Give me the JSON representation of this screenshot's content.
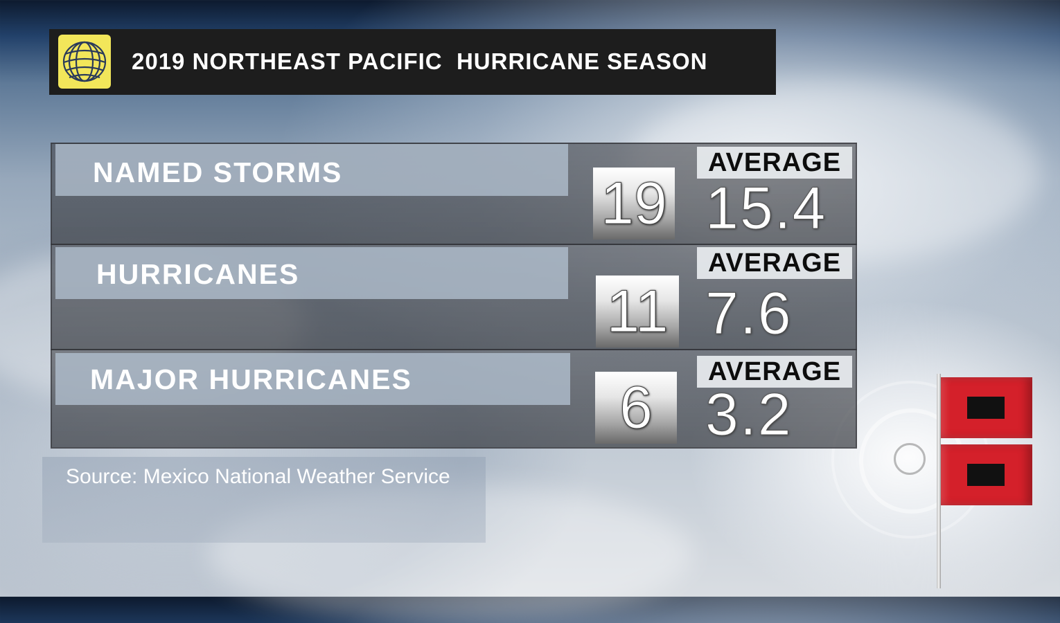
{
  "title": "2019 NORTHEAST PACIFIC  HURRICANE SEASON",
  "rows": [
    {
      "label": "NAMED STORMS",
      "value": "19",
      "average_label": "AVERAGE",
      "average_value": "15.4"
    },
    {
      "label": "HURRICANES",
      "value": "11",
      "average_label": "AVERAGE",
      "average_value": "7.6"
    },
    {
      "label": "MAJOR HURRICANES",
      "value": "6",
      "average_label": "AVERAGE",
      "average_value": "3.2"
    }
  ],
  "source": "Source: Mexico National Weather Service",
  "icons": {
    "logo": "weather-network-logo-icon",
    "flags": "hurricane-warning-flags-icon"
  },
  "colors": {
    "title_bar": "#1d1d1d",
    "logo_yellow": "#f2e65a",
    "flag_red": "#d4202a",
    "flag_square": "#111111"
  }
}
